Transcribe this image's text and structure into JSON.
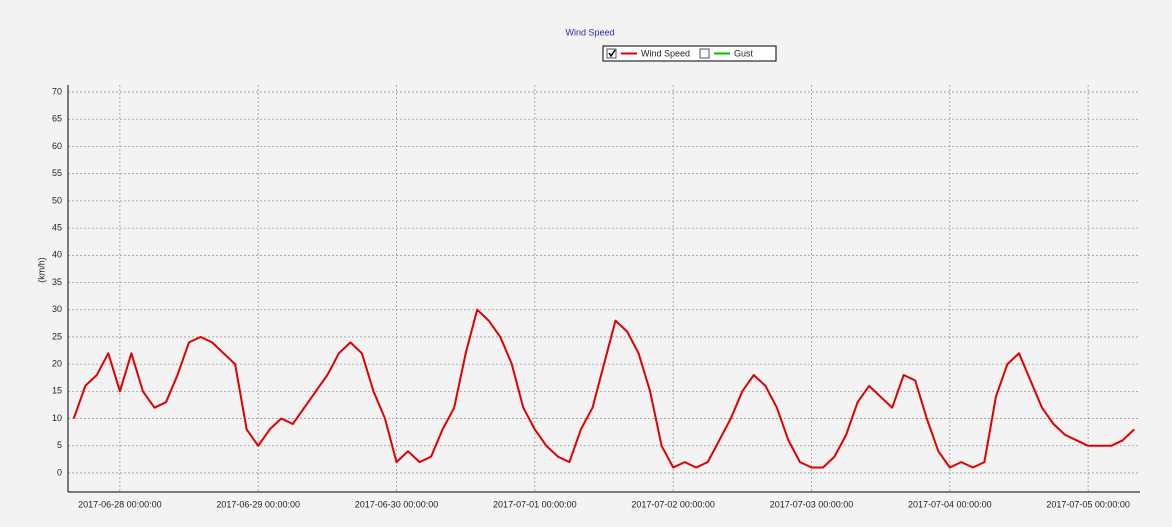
{
  "chart_data": {
    "type": "line",
    "title": "Wind Speed",
    "y_label": "(km/h)",
    "legend": [
      {
        "name": "Wind Speed",
        "color": "#e00000",
        "checked": true
      },
      {
        "name": "Gust",
        "color": "#00c000",
        "checked": false
      }
    ],
    "x": [
      "2017-06-27 16:00:00",
      "2017-06-27 18:00:00",
      "2017-06-27 20:00:00",
      "2017-06-27 22:00:00",
      "2017-06-28 00:00:00",
      "2017-06-28 02:00:00",
      "2017-06-28 04:00:00",
      "2017-06-28 06:00:00",
      "2017-06-28 08:00:00",
      "2017-06-28 10:00:00",
      "2017-06-28 12:00:00",
      "2017-06-28 14:00:00",
      "2017-06-28 16:00:00",
      "2017-06-28 18:00:00",
      "2017-06-28 20:00:00",
      "2017-06-28 22:00:00",
      "2017-06-29 00:00:00",
      "2017-06-29 02:00:00",
      "2017-06-29 04:00:00",
      "2017-06-29 06:00:00",
      "2017-06-29 08:00:00",
      "2017-06-29 10:00:00",
      "2017-06-29 12:00:00",
      "2017-06-29 14:00:00",
      "2017-06-29 16:00:00",
      "2017-06-29 18:00:00",
      "2017-06-29 20:00:00",
      "2017-06-29 22:00:00",
      "2017-06-30 00:00:00",
      "2017-06-30 02:00:00",
      "2017-06-30 04:00:00",
      "2017-06-30 06:00:00",
      "2017-06-30 08:00:00",
      "2017-06-30 10:00:00",
      "2017-06-30 12:00:00",
      "2017-06-30 14:00:00",
      "2017-06-30 16:00:00",
      "2017-06-30 18:00:00",
      "2017-06-30 20:00:00",
      "2017-06-30 22:00:00",
      "2017-07-01 00:00:00",
      "2017-07-01 02:00:00",
      "2017-07-01 04:00:00",
      "2017-07-01 06:00:00",
      "2017-07-01 08:00:00",
      "2017-07-01 10:00:00",
      "2017-07-01 12:00:00",
      "2017-07-01 14:00:00",
      "2017-07-01 16:00:00",
      "2017-07-01 18:00:00",
      "2017-07-01 20:00:00",
      "2017-07-01 22:00:00",
      "2017-07-02 00:00:00",
      "2017-07-02 02:00:00",
      "2017-07-02 04:00:00",
      "2017-07-02 06:00:00",
      "2017-07-02 08:00:00",
      "2017-07-02 10:00:00",
      "2017-07-02 12:00:00",
      "2017-07-02 14:00:00",
      "2017-07-02 16:00:00",
      "2017-07-02 18:00:00",
      "2017-07-02 20:00:00",
      "2017-07-02 22:00:00",
      "2017-07-03 00:00:00",
      "2017-07-03 02:00:00",
      "2017-07-03 04:00:00",
      "2017-07-03 06:00:00",
      "2017-07-03 08:00:00",
      "2017-07-03 10:00:00",
      "2017-07-03 12:00:00",
      "2017-07-03 14:00:00",
      "2017-07-03 16:00:00",
      "2017-07-03 18:00:00",
      "2017-07-03 20:00:00",
      "2017-07-03 22:00:00",
      "2017-07-04 00:00:00",
      "2017-07-04 02:00:00",
      "2017-07-04 04:00:00",
      "2017-07-04 06:00:00",
      "2017-07-04 08:00:00",
      "2017-07-04 10:00:00",
      "2017-07-04 12:00:00",
      "2017-07-04 14:00:00",
      "2017-07-04 16:00:00",
      "2017-07-04 18:00:00",
      "2017-07-04 20:00:00",
      "2017-07-04 22:00:00",
      "2017-07-05 00:00:00",
      "2017-07-05 02:00:00",
      "2017-07-05 04:00:00",
      "2017-07-05 06:00:00",
      "2017-07-05 08:00:00"
    ],
    "series": [
      {
        "name": "Wind Speed",
        "color": "#e00000",
        "values": [
          10,
          16,
          18,
          22,
          15,
          22,
          15,
          12,
          13,
          18,
          24,
          25,
          24,
          22,
          20,
          8,
          5,
          8,
          10,
          9,
          12,
          15,
          18,
          22,
          24,
          22,
          15,
          10,
          2,
          4,
          2,
          3,
          8,
          12,
          22,
          30,
          28,
          25,
          20,
          12,
          8,
          5,
          3,
          2,
          8,
          12,
          20,
          28,
          26,
          22,
          15,
          5,
          1,
          2,
          1,
          2,
          6,
          10,
          15,
          18,
          16,
          12,
          6,
          2,
          1,
          1,
          3,
          7,
          13,
          16,
          14,
          12,
          18,
          17,
          10,
          4,
          1,
          2,
          1,
          2,
          14,
          20,
          22,
          17,
          12,
          9,
          7,
          6,
          5,
          5,
          5,
          6,
          8
        ]
      }
    ],
    "xlim": [
      "2017-06-27 15:00:00",
      "2017-07-05 09:00:00"
    ],
    "xticks": [
      "2017-06-28 00:00:00",
      "2017-06-29 00:00:00",
      "2017-06-30 00:00:00",
      "2017-07-01 00:00:00",
      "2017-07-02 00:00:00",
      "2017-07-03 00:00:00",
      "2017-07-04 00:00:00",
      "2017-07-05 00:00:00"
    ],
    "ylim": [
      -3.5,
      71.3
    ],
    "yticks": [
      0,
      5,
      10,
      15,
      20,
      25,
      30,
      35,
      40,
      45,
      50,
      55,
      60,
      65,
      70
    ],
    "grid": true
  }
}
